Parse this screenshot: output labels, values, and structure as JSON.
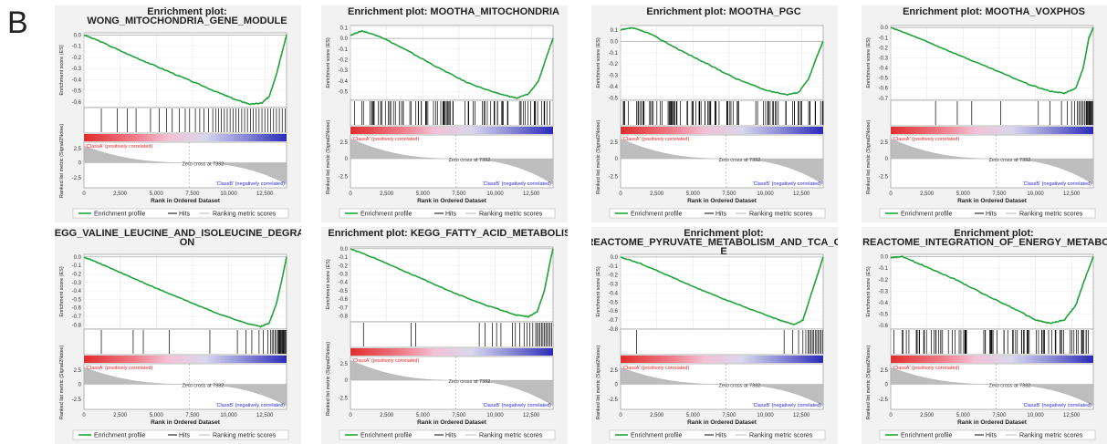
{
  "panel_letter": "B",
  "common": {
    "es_axis_label": "Enrichment score (ES)",
    "metric_axis_label": "Ranked list metric (Signal2Noise)",
    "x_axis_label": "Rank in Ordered Dataset",
    "class_a_label": "'ClassA' (positively correlated)",
    "class_b_label": "'ClassB' (negatively correlated)",
    "zero_cross_label": "Zero cross at 7332",
    "legend": [
      "Enrichment profile",
      "Hits",
      "Ranking metric scores"
    ],
    "x_ticks": [
      "0",
      "2,500",
      "5,000",
      "7,500",
      "10,000",
      "12,500"
    ],
    "metric_ticks": [
      "2.5",
      "0",
      "-2.5"
    ],
    "colors": {
      "profile": "#1fa33a",
      "class_a": "#e8272f",
      "class_b": "#2b2bd6",
      "metric_fill": "#bdbdbd"
    }
  },
  "chart_data": [
    {
      "type": "line",
      "title_lines": [
        "Enrichment plot:",
        "WONG_MITOCHONDRIA_GENE_MODULE"
      ],
      "y_ticks": [
        "0.0",
        "-0.1",
        "-0.2",
        "-0.3",
        "-0.4",
        "-0.5",
        "-0.6"
      ],
      "ylim": [
        -0.65,
        0.02
      ],
      "xlim": [
        0,
        14000
      ],
      "es_points": [
        [
          0,
          0.0
        ],
        [
          1000,
          -0.05
        ],
        [
          3000,
          -0.17
        ],
        [
          5000,
          -0.28
        ],
        [
          7000,
          -0.39
        ],
        [
          9000,
          -0.5
        ],
        [
          10500,
          -0.58
        ],
        [
          11500,
          -0.62
        ],
        [
          12300,
          -0.61
        ],
        [
          12800,
          -0.55
        ],
        [
          13300,
          -0.35
        ],
        [
          13700,
          -0.15
        ],
        [
          14000,
          0.0
        ]
      ],
      "hits": [
        1200,
        2300,
        3000,
        3600,
        4600,
        5200,
        5700,
        6100,
        6600,
        7000,
        7300,
        7700,
        8000,
        8300,
        8600,
        8900,
        9100,
        9300,
        9500,
        9700,
        9900,
        10100,
        10300,
        10500,
        10700,
        10900,
        11100,
        11300,
        11500,
        11700,
        11900,
        12100,
        12300,
        12500,
        12700,
        12900,
        13100,
        13300,
        13500,
        13700,
        13900
      ]
    },
    {
      "type": "line",
      "title_lines": [
        "Enrichment plot: MOOTHA_MITOCHONDRIA"
      ],
      "y_ticks": [
        "0.1",
        "0.0",
        "-0.1",
        "-0.2",
        "-0.3",
        "-0.4",
        "-0.5"
      ],
      "ylim": [
        -0.58,
        0.12
      ],
      "xlim": [
        0,
        14000
      ],
      "es_points": [
        [
          0,
          0.03
        ],
        [
          800,
          0.07
        ],
        [
          2000,
          0.02
        ],
        [
          4000,
          -0.12
        ],
        [
          6000,
          -0.27
        ],
        [
          8000,
          -0.41
        ],
        [
          10000,
          -0.51
        ],
        [
          11500,
          -0.56
        ],
        [
          12300,
          -0.52
        ],
        [
          13000,
          -0.4
        ],
        [
          13600,
          -0.15
        ],
        [
          14000,
          0.0
        ]
      ],
      "hits_density": 90
    },
    {
      "type": "line",
      "title_lines": [
        "Enrichment plot: MOOTHA_PGC"
      ],
      "y_ticks": [
        "0.1",
        "0.0",
        "-0.1",
        "-0.2",
        "-0.3",
        "-0.4",
        "-0.5"
      ],
      "ylim": [
        -0.52,
        0.14
      ],
      "xlim": [
        0,
        14000
      ],
      "es_points": [
        [
          0,
          0.1
        ],
        [
          800,
          0.12
        ],
        [
          2000,
          0.07
        ],
        [
          4000,
          -0.07
        ],
        [
          6000,
          -0.2
        ],
        [
          8000,
          -0.33
        ],
        [
          10000,
          -0.43
        ],
        [
          11500,
          -0.47
        ],
        [
          12300,
          -0.45
        ],
        [
          13000,
          -0.33
        ],
        [
          13600,
          -0.12
        ],
        [
          14000,
          0.0
        ]
      ],
      "hits_density": 95
    },
    {
      "type": "line",
      "title_lines": [
        "Enrichment plot: MOOTHA_VOXPHOS"
      ],
      "y_ticks": [
        "0.0",
        "-0.1",
        "-0.2",
        "-0.3",
        "-0.4",
        "-0.5",
        "-0.6",
        "-0.7"
      ],
      "ylim": [
        -0.72,
        0.02
      ],
      "xlim": [
        0,
        14000
      ],
      "es_points": [
        [
          0,
          0.0
        ],
        [
          1500,
          -0.08
        ],
        [
          3500,
          -0.2
        ],
        [
          5500,
          -0.32
        ],
        [
          7500,
          -0.44
        ],
        [
          9500,
          -0.56
        ],
        [
          11000,
          -0.63
        ],
        [
          12000,
          -0.65
        ],
        [
          12800,
          -0.6
        ],
        [
          13300,
          -0.4
        ],
        [
          13700,
          -0.1
        ],
        [
          14000,
          0.0
        ]
      ],
      "hits": [
        3100,
        4600,
        5600,
        7600,
        10200,
        11000,
        11800,
        12200,
        12500,
        12700,
        12900,
        13000,
        13100,
        13200,
        13300,
        13400,
        13500,
        13550,
        13600,
        13650,
        13700,
        13750,
        13800,
        13850,
        13900,
        13950
      ]
    },
    {
      "type": "line",
      "title_lines": [
        "KEGG_VALINE_LEUCINE_AND_ISOLEUCINE_DEGRADATI",
        "ON"
      ],
      "y_ticks": [
        "0.0",
        "-0.1",
        "-0.2",
        "-0.3",
        "-0.4",
        "-0.5",
        "-0.6",
        "-0.7",
        "-0.8"
      ],
      "ylim": [
        -0.85,
        0.03
      ],
      "xlim": [
        0,
        14000
      ],
      "es_points": [
        [
          0,
          0.0
        ],
        [
          1000,
          -0.07
        ],
        [
          3000,
          -0.22
        ],
        [
          5000,
          -0.37
        ],
        [
          7000,
          -0.51
        ],
        [
          9000,
          -0.65
        ],
        [
          11000,
          -0.77
        ],
        [
          12200,
          -0.82
        ],
        [
          12800,
          -0.78
        ],
        [
          13300,
          -0.55
        ],
        [
          13700,
          -0.25
        ],
        [
          14000,
          0.0
        ]
      ],
      "hits": [
        1200,
        3400,
        4100,
        5900,
        8700,
        10600,
        11200,
        11600,
        12100,
        12400,
        12700,
        12900,
        13000,
        13100,
        13200,
        13300,
        13400,
        13450,
        13500,
        13550,
        13600,
        13650,
        13700,
        13750,
        13800,
        13850,
        13900,
        13950
      ]
    },
    {
      "type": "line",
      "title_lines": [
        "Enrichment plot: KEGG_FATTY_ACID_METABOLISM"
      ],
      "y_ticks": [
        "0.0",
        "-0.1",
        "-0.2",
        "-0.3",
        "-0.4",
        "-0.5",
        "-0.6",
        "-0.7",
        "-0.8"
      ],
      "ylim": [
        -0.87,
        0.02
      ],
      "xlim": [
        0,
        14000
      ],
      "es_points": [
        [
          0,
          0.0
        ],
        [
          1500,
          -0.1
        ],
        [
          3500,
          -0.25
        ],
        [
          5500,
          -0.4
        ],
        [
          7500,
          -0.55
        ],
        [
          9500,
          -0.68
        ],
        [
          11500,
          -0.79
        ],
        [
          12300,
          -0.81
        ],
        [
          12900,
          -0.75
        ],
        [
          13400,
          -0.5
        ],
        [
          13800,
          -0.15
        ],
        [
          14000,
          0.0
        ]
      ],
      "hits": [
        900,
        4200,
        4500,
        8900,
        9300,
        9800,
        10100,
        10400,
        11200,
        11400,
        11700,
        12000,
        12200,
        12400,
        12600,
        12800,
        12900,
        13000,
        13100,
        13200,
        13300,
        13400,
        13500,
        13600,
        13700,
        13800,
        13900
      ]
    },
    {
      "type": "line",
      "title_lines": [
        "Enrichment plot:",
        "REACTOME_PYRUVATE_METABOLISM_AND_TCA_CYCL",
        "E"
      ],
      "y_ticks": [
        "0.0",
        "-0.1",
        "-0.2",
        "-0.3",
        "-0.4",
        "-0.5",
        "-0.6",
        "-0.7",
        "-0.8"
      ],
      "ylim": [
        -0.8,
        0.03
      ],
      "xlim": [
        0,
        14000
      ],
      "es_points": [
        [
          0,
          0.0
        ],
        [
          1500,
          -0.08
        ],
        [
          3500,
          -0.22
        ],
        [
          5500,
          -0.36
        ],
        [
          7500,
          -0.49
        ],
        [
          9500,
          -0.61
        ],
        [
          11000,
          -0.7
        ],
        [
          12000,
          -0.75
        ],
        [
          12600,
          -0.7
        ],
        [
          13100,
          -0.45
        ],
        [
          13600,
          -0.2
        ],
        [
          14000,
          0.0
        ]
      ],
      "hits": [
        1100,
        11300,
        11900,
        12300,
        12600,
        12800,
        12950,
        13050,
        13150,
        13250,
        13350,
        13450,
        13550,
        13650,
        13750,
        13850,
        13950
      ]
    },
    {
      "type": "line",
      "title_lines": [
        "Enrichment plot:",
        "REACTOME_INTEGRATION_OF_ENERGY_METABOLIS"
      ],
      "y_ticks": [
        "0.0",
        "-0.1",
        "-0.2",
        "-0.3",
        "-0.4",
        "-0.5",
        "-0.6"
      ],
      "ylim": [
        -0.63,
        0.02
      ],
      "xlim": [
        0,
        14000
      ],
      "es_points": [
        [
          0,
          -0.01
        ],
        [
          800,
          0.0
        ],
        [
          2500,
          -0.09
        ],
        [
          4500,
          -0.2
        ],
        [
          6500,
          -0.33
        ],
        [
          8500,
          -0.45
        ],
        [
          10000,
          -0.55
        ],
        [
          11000,
          -0.58
        ],
        [
          12000,
          -0.55
        ],
        [
          12800,
          -0.42
        ],
        [
          13400,
          -0.2
        ],
        [
          14000,
          0.0
        ]
      ],
      "hits_density": 85
    }
  ]
}
